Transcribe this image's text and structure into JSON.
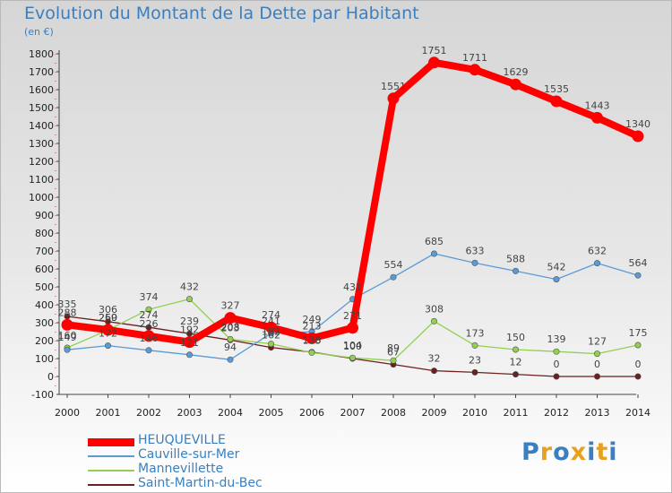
{
  "chart_data": {
    "type": "line",
    "title": "Evolution du Montant de la Dette par Habitant",
    "unit_label": "(en €)",
    "x": [
      "2000",
      "2001",
      "2002",
      "2003",
      "2004",
      "2005",
      "2006",
      "2007",
      "2008",
      "2009",
      "2010",
      "2011",
      "2012",
      "2013",
      "2014"
    ],
    "ylim": [
      -100,
      1800
    ],
    "yticks": [
      -100,
      0,
      100,
      200,
      300,
      400,
      500,
      600,
      700,
      800,
      900,
      1000,
      1100,
      1200,
      1300,
      1400,
      1500,
      1600,
      1700,
      1800
    ],
    "grid": false,
    "legend_position": "bottom-left",
    "series": [
      {
        "name": "HEUQUEVILLE",
        "color": "#ff0000",
        "values": [
          288,
          260,
          226,
          192,
          327,
          274,
          213,
          271,
          1551,
          1751,
          1711,
          1629,
          1535,
          1443,
          1340
        ]
      },
      {
        "name": "Cauville-sur-Mer",
        "color": "#5b9bd5",
        "values": [
          149,
          172,
          146,
          121,
          94,
          241,
          249,
          431,
          554,
          685,
          633,
          588,
          542,
          632,
          564
        ]
      },
      {
        "name": "Mannevillette",
        "color": "#92d050",
        "values": [
          160,
          259,
          374,
          432,
          208,
          182,
          133,
          104,
          89,
          308,
          173,
          150,
          139,
          127,
          175
        ]
      },
      {
        "name": "Saint-Martin-du-Bec",
        "color": "#6b1f1f",
        "values": [
          335,
          306,
          274,
          239,
          203,
          162,
          136,
          100,
          67,
          32,
          23,
          12,
          0,
          0,
          0
        ]
      }
    ]
  },
  "brand": {
    "letters": [
      "P",
      "r",
      "o",
      "x",
      "i",
      "t",
      "i"
    ],
    "colors": [
      "#3a7fc0",
      "#e8a020",
      "#3a7fc0",
      "#e8a020",
      "#3a7fc0",
      "#e8a020",
      "#3a7fc0"
    ]
  }
}
